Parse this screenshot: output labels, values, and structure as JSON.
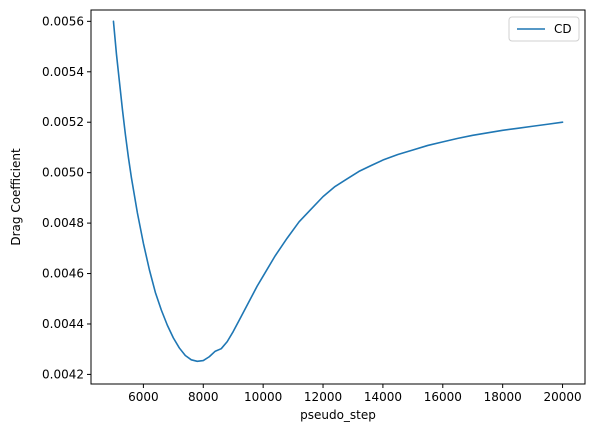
{
  "chart_data": {
    "type": "line",
    "title": "",
    "xlabel": "pseudo_step",
    "ylabel": "Drag Coefficient",
    "xlim": [
      4250,
      20750
    ],
    "ylim": [
      0.004162,
      0.005645
    ],
    "xticks": [
      6000,
      8000,
      10000,
      12000,
      14000,
      16000,
      18000,
      20000
    ],
    "xtick_labels": [
      "6000",
      "8000",
      "10000",
      "12000",
      "14000",
      "16000",
      "18000",
      "20000"
    ],
    "yticks": [
      0.0042,
      0.0044,
      0.0046,
      0.0048,
      0.005,
      0.0052,
      0.0054,
      0.0056
    ],
    "ytick_labels": [
      "0.0042",
      "0.0044",
      "0.0046",
      "0.0048",
      "0.0050",
      "0.0052",
      "0.0054",
      "0.0056"
    ],
    "grid": false,
    "legend": {
      "position": "top-right",
      "entries": [
        "CD"
      ]
    },
    "series": [
      {
        "name": "CD",
        "color": "#1f77b4",
        "x": [
          5000,
          5100,
          5200,
          5300,
          5400,
          5500,
          5600,
          5800,
          6000,
          6200,
          6400,
          6600,
          6800,
          7000,
          7200,
          7400,
          7600,
          7800,
          8000,
          8200,
          8400,
          8600,
          8800,
          9000,
          9200,
          9400,
          9600,
          9800,
          10000,
          10400,
          10800,
          11200,
          11600,
          12000,
          12400,
          12800,
          13200,
          13600,
          14000,
          14500,
          15000,
          15500,
          16000,
          16500,
          17000,
          17500,
          18000,
          18500,
          19000,
          19500,
          20000
        ],
        "y": [
          0.0056,
          0.00547,
          0.00536,
          0.00525,
          0.00515,
          0.00506,
          0.00498,
          0.00484,
          0.00472,
          0.004615,
          0.004525,
          0.004455,
          0.004395,
          0.004345,
          0.004305,
          0.004275,
          0.004258,
          0.004252,
          0.004255,
          0.00427,
          0.004292,
          0.004302,
          0.00433,
          0.00437,
          0.004415,
          0.00446,
          0.004505,
          0.00455,
          0.00459,
          0.00467,
          0.00474,
          0.004805,
          0.004855,
          0.004905,
          0.004945,
          0.004975,
          0.005005,
          0.005028,
          0.00505,
          0.005072,
          0.00509,
          0.005108,
          0.005122,
          0.005136,
          0.005148,
          0.005158,
          0.005168,
          0.005176,
          0.005184,
          0.005192,
          0.0052
        ]
      }
    ]
  }
}
